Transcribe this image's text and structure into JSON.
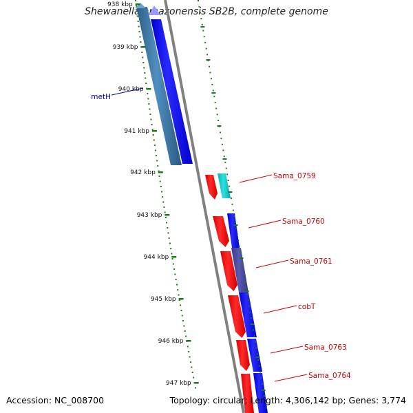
{
  "title": "Shewanella amazonensis SB2B, complete genome",
  "footer": {
    "accession": "Accession: NC_008700",
    "summary": "Topology: circular; Length: 4,306,142 bp; Genes: 3,774"
  },
  "colors": {
    "backbone": "#808080",
    "tick": "#1a7a1a",
    "forward_cds": "#ff0000",
    "reverse_cds": "#0000ff",
    "label_red": "#cc0000",
    "label_blue": "#000099"
  },
  "ticks": [
    {
      "label": "938 kbp"
    },
    {
      "label": "939 kbp"
    },
    {
      "label": "940 kbp"
    },
    {
      "label": "941 kbp"
    },
    {
      "label": "942 kbp"
    },
    {
      "label": "943 kbp"
    },
    {
      "label": "944 kbp"
    },
    {
      "label": "945 kbp"
    },
    {
      "label": "946 kbp"
    },
    {
      "label": "947 kbp"
    }
  ],
  "gene_labels": [
    {
      "name": "metH",
      "color": "blue"
    },
    {
      "name": "Sama_0759",
      "color": "red"
    },
    {
      "name": "Sama_0760",
      "color": "red"
    },
    {
      "name": "Sama_0761",
      "color": "red"
    },
    {
      "name": "cobT",
      "color": "red"
    },
    {
      "name": "Sama_0763",
      "color": "red"
    },
    {
      "name": "Sama_0764",
      "color": "red"
    }
  ]
}
